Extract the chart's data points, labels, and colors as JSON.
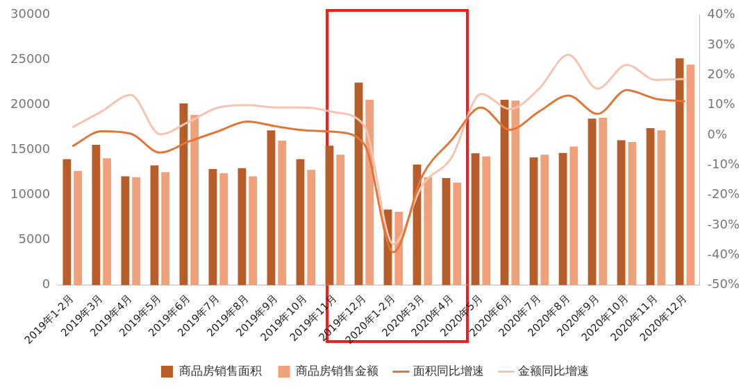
{
  "chart_data": {
    "type": "bar",
    "categories": [
      "2019年1-2月",
      "2019年3月",
      "2019年4月",
      "2019年5月",
      "2019年6月",
      "2019年7月",
      "2019年8月",
      "2019年9月",
      "2019年10月",
      "2019年11月",
      "2019年12月",
      "2020年1-2月",
      "2020年3月",
      "2020年4月",
      "2020年5月",
      "2020年6月",
      "2020年7月",
      "2020年8月",
      "2020年9月",
      "2020年10月",
      "2020年11月",
      "2020年12月"
    ],
    "series": [
      {
        "name": "商品房销售面积",
        "color": "#b85c2a",
        "values": [
          14000,
          15600,
          12100,
          13300,
          20200,
          12900,
          13000,
          17200,
          14000,
          15500,
          22500,
          8400,
          13400,
          11900,
          14650,
          20600,
          14200,
          14700,
          18500,
          16100,
          17450,
          25200
        ]
      },
      {
        "name": "商品房销售金额",
        "color": "#f0a07a",
        "values": [
          12700,
          14100,
          12000,
          12550,
          18900,
          12450,
          12100,
          16050,
          12800,
          14500,
          20600,
          8150,
          12000,
          11400,
          14300,
          20500,
          14500,
          15400,
          18600,
          15900,
          17200,
          24500
        ]
      },
      {
        "name": "面积同比增速",
        "type": "line",
        "axis": "y2",
        "color": "#e0773a",
        "values": [
          -3.7,
          1.3,
          0.5,
          -5.8,
          -2.1,
          1.3,
          4.5,
          2.9,
          1.6,
          1.1,
          -3,
          -39,
          -13.4,
          -1.6,
          9.2,
          1.8,
          7.9,
          13.2,
          7.1,
          15,
          12.1,
          11.3
        ]
      },
      {
        "name": "金额同比增速",
        "type": "line",
        "axis": "y2",
        "color": "#f6c4b0",
        "values": [
          2.6,
          7.9,
          13.4,
          0.3,
          4.5,
          9.2,
          10,
          9.2,
          9.2,
          7.6,
          3.2,
          -36.3,
          -16.6,
          -7.4,
          13.7,
          8.7,
          15.5,
          26.8,
          15.5,
          23.4,
          18.4,
          18.7
        ]
      }
    ],
    "ylim": [
      0,
      30000
    ],
    "yticks": [
      0,
      5000,
      10000,
      15000,
      20000,
      25000,
      30000
    ],
    "y2lim": [
      -50,
      40
    ],
    "y2ticks": [
      {
        "value": -50,
        "label": "-50%"
      },
      {
        "value": -40,
        "label": "-40%"
      },
      {
        "value": -30,
        "label": "-30%"
      },
      {
        "value": -20,
        "label": "-20%"
      },
      {
        "value": -10,
        "label": "-10%"
      },
      {
        "value": 0,
        "label": "0%"
      },
      {
        "value": 10,
        "label": "10%"
      },
      {
        "value": 20,
        "label": "20%"
      },
      {
        "value": 30,
        "label": "30%"
      },
      {
        "value": 40,
        "label": "40%"
      }
    ],
    "grid": false,
    "legend": "bottom"
  }
}
